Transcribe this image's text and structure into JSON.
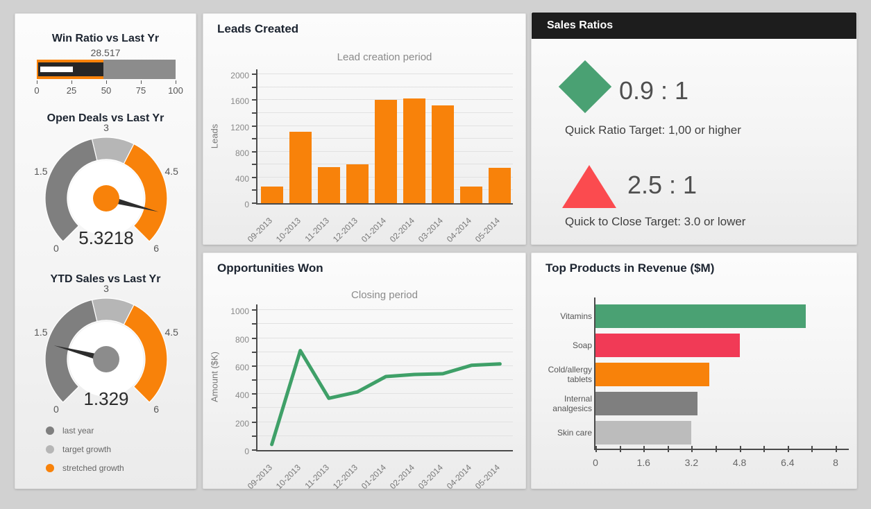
{
  "sidebar_legend": [
    {
      "label": "last year",
      "color": "#7f7f7f"
    },
    {
      "label": "target growth",
      "color": "#b6b6b6"
    },
    {
      "label": "stretched growth",
      "color": "#f8820a"
    }
  ],
  "sales_ratios": {
    "header": "Sales Ratios",
    "items": [
      {
        "icon": "diamond-icon",
        "color": "#4aa173",
        "ratio": "0.9 : 1",
        "target": "Quick Ratio Target: 1,00 or higher"
      },
      {
        "icon": "triangle-icon",
        "color": "#fb4b4f",
        "ratio": "2.5 : 1",
        "target": "Quick to Close Target: 3.0 or lower"
      }
    ]
  },
  "chart_data": [
    {
      "id": "win-ratio-bullet",
      "type": "bullet",
      "title": "Win Ratio vs Last Yr",
      "value": 28.517,
      "value_label": "28.517",
      "xlim": [
        0,
        100
      ],
      "xticks": [
        "0",
        "25",
        "50",
        "75",
        "100"
      ],
      "ranges": [
        {
          "label": "stretched growth",
          "to": 48,
          "color": "#f8820a"
        },
        {
          "label": "last year",
          "to": 100,
          "color": "#8c8c8c"
        }
      ],
      "measure_bar": {
        "value": 48,
        "color": "#262626"
      },
      "actual_bar": {
        "value": 28.517,
        "color": "#ffffff"
      }
    },
    {
      "id": "open-deals-gauge",
      "type": "gauge",
      "title": "Open Deals vs Last Yr",
      "value": 5.3218,
      "value_label": "5.3218",
      "min": 0,
      "max": 6,
      "ticks": [
        0,
        1.5,
        3,
        4.5,
        6
      ],
      "segments": [
        {
          "label": "last year",
          "from": 0,
          "to": 2.7,
          "color": "#7f7f7f"
        },
        {
          "label": "target growth",
          "from": 2.7,
          "to": 3.6,
          "color": "#b6b6b6"
        },
        {
          "label": "stretched growth",
          "from": 3.6,
          "to": 6,
          "color": "#f8820a"
        }
      ],
      "hub_color": "#f8820a",
      "needle_color": "#2d2d2d"
    },
    {
      "id": "ytd-sales-gauge",
      "type": "gauge",
      "title": "YTD Sales vs Last Yr",
      "value": 1.329,
      "value_label": "1.329",
      "min": 0,
      "max": 6,
      "ticks": [
        0,
        1.5,
        3,
        4.5,
        6
      ],
      "segments": [
        {
          "label": "last year",
          "from": 0,
          "to": 2.7,
          "color": "#7f7f7f"
        },
        {
          "label": "target growth",
          "from": 2.7,
          "to": 3.6,
          "color": "#b6b6b6"
        },
        {
          "label": "stretched growth",
          "from": 3.6,
          "to": 6,
          "color": "#f8820a"
        }
      ],
      "hub_color": "#8c8c8c",
      "needle_color": "#2d2d2d"
    },
    {
      "id": "leads-created",
      "type": "bar",
      "panel_title": "Leads Created",
      "title": "Lead creation period",
      "ylabel": "Leads",
      "categories": [
        "09-2013",
        "10-2013",
        "11-2013",
        "12-2013",
        "01-2014",
        "02-2014",
        "03-2014",
        "04-2014",
        "05-2014"
      ],
      "values": [
        260,
        1110,
        560,
        600,
        1600,
        1625,
        1520,
        260,
        545
      ],
      "ylim": [
        0,
        2100
      ],
      "ymax_tick": 2000,
      "ytick_step": 200,
      "ylabel_step": 400,
      "bar_color": "#f8820a",
      "grid": true
    },
    {
      "id": "opportunities-won",
      "type": "line",
      "panel_title": "Opportunities Won",
      "title": "Closing period",
      "ylabel": "Amount ($K)",
      "categories": [
        "09-2013",
        "10-2013",
        "11-2013",
        "12-2013",
        "01-2014",
        "02-2014",
        "03-2014",
        "04-2014",
        "05-2014"
      ],
      "values": [
        50,
        720,
        380,
        425,
        535,
        550,
        555,
        615,
        625
      ],
      "ylim": [
        0,
        1050
      ],
      "ymax_tick": 1000,
      "ytick_step": 100,
      "ylabel_step": 200,
      "line_color": "#3fa068",
      "grid": true
    },
    {
      "id": "top-products",
      "type": "bar-horizontal",
      "panel_title": "Top Products in Revenue ($M)",
      "categories": [
        "Vitamins",
        "Soap",
        "Cold/allergy tablets",
        "Internal analgesics",
        "Skin care"
      ],
      "values": [
        7.0,
        4.8,
        3.8,
        3.4,
        3.2
      ],
      "colors": [
        "#4aa173",
        "#f13a56",
        "#f8820a",
        "#7f7f7f",
        "#bcbcbc"
      ],
      "xlim": [
        0,
        8
      ],
      "xtick_step": 0.8,
      "xtick_labels": [
        "0",
        "1.6",
        "3.2",
        "4.8",
        "6.4",
        "8"
      ]
    }
  ]
}
